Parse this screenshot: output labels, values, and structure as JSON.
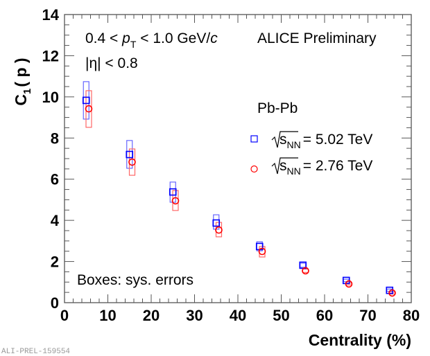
{
  "chart_data": {
    "type": "scatter",
    "title": "",
    "xlabel": "Centrality (%)",
    "ylabel_main": "C",
    "ylabel_sub": "1",
    "ylabel_arg": "( p )",
    "xlim": [
      0,
      80
    ],
    "ylim": [
      0,
      14
    ],
    "x_major_ticks": [
      0,
      10,
      20,
      30,
      40,
      50,
      60,
      70,
      80
    ],
    "x_tick_labels": [
      "0",
      "10",
      "20",
      "30",
      "40",
      "50",
      "60",
      "70",
      "80"
    ],
    "x_minor_step": 2,
    "y_major_ticks": [
      0,
      2,
      4,
      6,
      8,
      10,
      12,
      14
    ],
    "y_tick_labels": [
      "0",
      "2",
      "4",
      "6",
      "8",
      "10",
      "12",
      "14"
    ],
    "y_minor_step": 0.5,
    "grid": false,
    "legend_placement": "right-middle",
    "legend_header": "Pb-Pb",
    "series": [
      {
        "name": "√sNN = 5.02 TeV",
        "legend_root": "s",
        "legend_sub": "NN",
        "legend_value": "= 5.02 TeV",
        "marker": "open-square",
        "color": "#0000ff",
        "sys_color": "#6666ff",
        "x": [
          5,
          15,
          25,
          35,
          45,
          55,
          65,
          75
        ],
        "y": [
          9.83,
          7.2,
          5.38,
          3.87,
          2.73,
          1.82,
          1.08,
          0.6
        ],
        "sys_low": [
          8.92,
          6.53,
          4.88,
          3.57,
          2.52,
          1.72,
          1.02,
          0.55
        ],
        "sys_high": [
          10.74,
          7.88,
          5.86,
          4.27,
          2.96,
          1.92,
          1.14,
          0.66
        ]
      },
      {
        "name": "√sNN = 2.76 TeV",
        "legend_root": "s",
        "legend_sub": "NN",
        "legend_value": "= 2.76 TeV",
        "marker": "open-circle",
        "color": "#ff0000",
        "sys_color": "#ff6666",
        "x": [
          5.6,
          15.6,
          25.6,
          35.6,
          45.6,
          55.6,
          65.6,
          75.6
        ],
        "y": [
          9.42,
          6.83,
          4.95,
          3.53,
          2.49,
          1.55,
          0.91,
          0.47
        ],
        "sys_low": [
          8.52,
          6.19,
          4.48,
          3.2,
          2.22,
          1.47,
          0.86,
          0.42
        ],
        "sys_high": [
          10.3,
          7.47,
          5.45,
          3.9,
          2.73,
          1.63,
          0.96,
          0.52
        ]
      }
    ],
    "annotations": {
      "kinematics_pre": "0.4 < ",
      "kinematics_p": "p",
      "kinematics_T": "T",
      "kinematics_mid": " < 1.0 GeV/",
      "kinematics_c": "c",
      "experiment": "ALICE Preliminary",
      "eta_cut": "|η| < 0.8",
      "sys_note": "Boxes: sys. errors"
    }
  },
  "watermark": "ALI-PREL-159554"
}
